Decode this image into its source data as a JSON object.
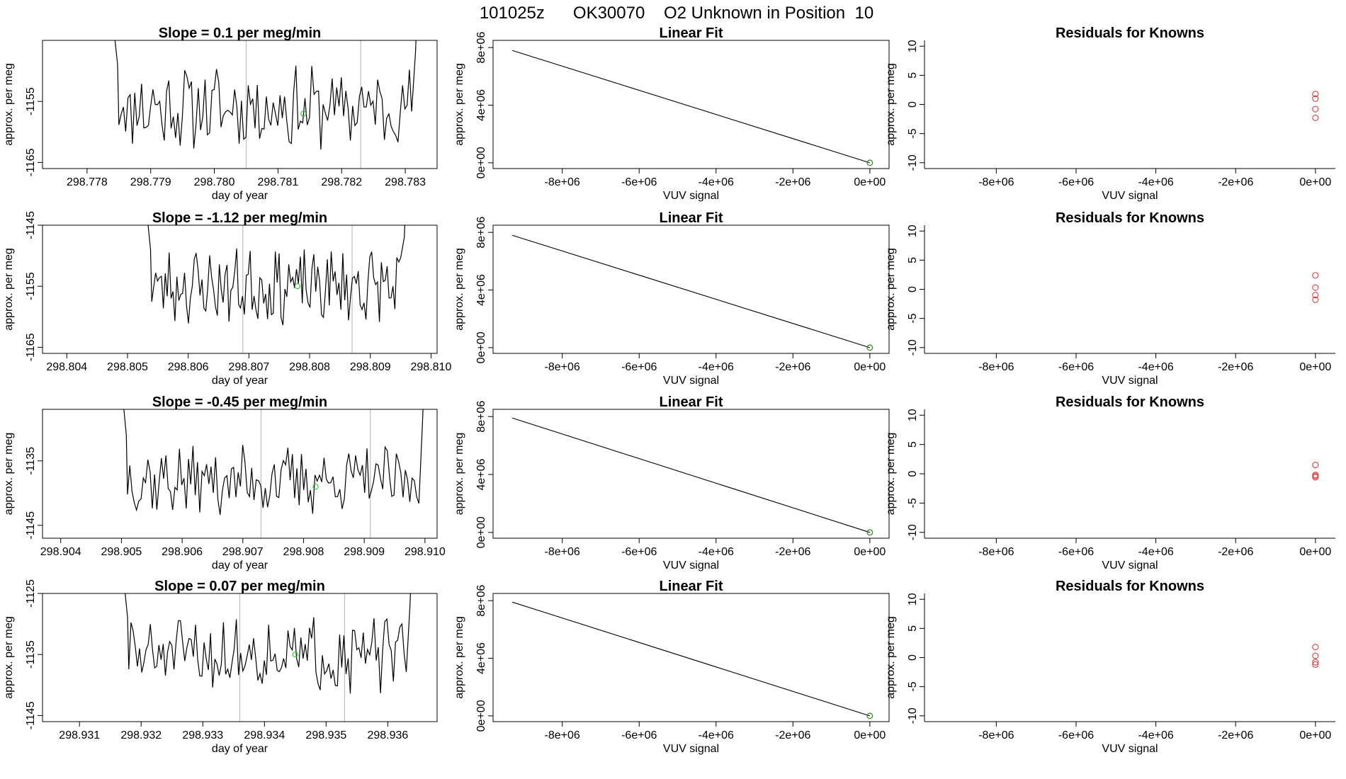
{
  "figure": {
    "title": "101025z      OK30070    O2 Unknown in Position  10"
  },
  "chart_data": [
    {
      "type": "line",
      "panel": "time-series",
      "row": 1,
      "title": "Slope =  0.1  per meg/min",
      "xlabel": "day of year",
      "ylabel": "approx. per meg",
      "xlim": [
        298.7773,
        298.7835
      ],
      "ylim": [
        -1166,
        -1145
      ],
      "xticks": [
        "298.778",
        "298.779",
        "298.780",
        "298.781",
        "298.782",
        "298.783"
      ],
      "yticks": [
        "-1155",
        "-1165"
      ],
      "vlines": [
        298.7805,
        298.7823
      ],
      "trace": {
        "start": 298.7785,
        "end": 298.7831,
        "n": 130,
        "mean": -1156,
        "amp": 5,
        "seed": 11
      },
      "marker": {
        "x": 298.7814,
        "y": -1157
      }
    },
    {
      "type": "line",
      "panel": "linear-fit",
      "row": 1,
      "title": "Linear Fit",
      "xlabel": "VUV signal",
      "ylabel": "approx. per meg",
      "xlim": [
        -9800000,
        500000
      ],
      "ylim": [
        -400000,
        8500000
      ],
      "xticks": [
        "-8e+06",
        "-6e+06",
        "-4e+06",
        "-2e+06",
        "0e+00"
      ],
      "yticks": [
        "0e+00",
        "4e+06",
        "8e+06"
      ],
      "x": [
        -9300000,
        0
      ],
      "y": [
        7800000,
        0
      ],
      "marker": {
        "x": 0,
        "y": 0
      }
    },
    {
      "type": "scatter",
      "panel": "residuals",
      "row": 1,
      "title": "Residuals for Knowns",
      "xlabel": "VUV signal",
      "ylabel": "approx. per meg",
      "xlim": [
        -9800000,
        500000
      ],
      "ylim": [
        -11,
        11
      ],
      "xticks": [
        "-8e+06",
        "-6e+06",
        "-4e+06",
        "-2e+06",
        "0e+00"
      ],
      "yticks": [
        "-10",
        "-5",
        "0",
        "5",
        "10"
      ],
      "x": [
        0,
        0,
        0,
        0
      ],
      "y": [
        1.8,
        1.0,
        -0.8,
        -2.3
      ]
    },
    {
      "type": "line",
      "panel": "time-series",
      "row": 2,
      "title": "Slope =  -1.12  per meg/min",
      "xlabel": "day of year",
      "ylabel": "approx. per meg",
      "xlim": [
        298.8036,
        298.8101
      ],
      "ylim": [
        -1166,
        -1145
      ],
      "xticks": [
        "298.804",
        "298.805",
        "298.806",
        "298.807",
        "298.808",
        "298.809",
        "298.810"
      ],
      "yticks": [
        "-1145",
        "-1155",
        "-1165"
      ],
      "vlines": [
        298.8069,
        298.8087
      ],
      "trace": {
        "start": 298.8054,
        "end": 298.8095,
        "n": 130,
        "mean": -1155,
        "amp": 4.5,
        "seed": 23
      },
      "marker": {
        "x": 298.8078,
        "y": -1155
      }
    },
    {
      "type": "line",
      "panel": "linear-fit",
      "row": 2,
      "title": "Linear Fit",
      "xlabel": "VUV signal",
      "ylabel": "approx. per meg",
      "xlim": [
        -9800000,
        500000
      ],
      "ylim": [
        -400000,
        8500000
      ],
      "xticks": [
        "-8e+06",
        "-6e+06",
        "-4e+06",
        "-2e+06",
        "0e+00"
      ],
      "yticks": [
        "0e+00",
        "4e+06",
        "8e+06"
      ],
      "x": [
        -9300000,
        0
      ],
      "y": [
        7800000,
        0
      ],
      "marker": {
        "x": 0,
        "y": 0
      }
    },
    {
      "type": "scatter",
      "panel": "residuals",
      "row": 2,
      "title": "Residuals for Knowns",
      "xlabel": "VUV signal",
      "ylabel": "approx. per meg",
      "xlim": [
        -9800000,
        500000
      ],
      "ylim": [
        -11,
        11
      ],
      "xticks": [
        "-8e+06",
        "-6e+06",
        "-4e+06",
        "-2e+06",
        "0e+00"
      ],
      "yticks": [
        "-10",
        "-5",
        "0",
        "5",
        "10"
      ],
      "x": [
        0,
        0,
        0,
        0
      ],
      "y": [
        2.4,
        0.3,
        -1.0,
        -1.8
      ]
    },
    {
      "type": "line",
      "panel": "time-series",
      "row": 3,
      "title": "Slope =  -0.45  per meg/min",
      "xlabel": "day of year",
      "ylabel": "approx. per meg",
      "xlim": [
        298.9037,
        298.9102
      ],
      "ylim": [
        -1147,
        -1127
      ],
      "xticks": [
        "298.904",
        "298.905",
        "298.906",
        "298.907",
        "298.908",
        "298.909",
        "298.910"
      ],
      "yticks": [
        "-1135",
        "-1145"
      ],
      "vlines": [
        298.9073,
        298.9091
      ],
      "trace": {
        "start": 298.9051,
        "end": 298.9099,
        "n": 130,
        "mean": -1138,
        "amp": 4,
        "seed": 37
      },
      "marker": {
        "x": 298.9082,
        "y": -1139
      }
    },
    {
      "type": "line",
      "panel": "linear-fit",
      "row": 3,
      "title": "Linear Fit",
      "xlabel": "VUV signal",
      "ylabel": "approx. per meg",
      "xlim": [
        -9800000,
        500000
      ],
      "ylim": [
        -400000,
        8500000
      ],
      "xticks": [
        "-8e+06",
        "-6e+06",
        "-4e+06",
        "-2e+06",
        "0e+00"
      ],
      "yticks": [
        "0e+00",
        "4e+06",
        "8e+06"
      ],
      "x": [
        -9300000,
        0
      ],
      "y": [
        7900000,
        0
      ],
      "marker": {
        "x": 0,
        "y": 0
      }
    },
    {
      "type": "scatter",
      "panel": "residuals",
      "row": 3,
      "title": "Residuals for Knowns",
      "xlabel": "VUV signal",
      "ylabel": "approx. per meg",
      "xlim": [
        -9800000,
        500000
      ],
      "ylim": [
        -11,
        11
      ],
      "xticks": [
        "-8e+06",
        "-6e+06",
        "-4e+06",
        "-2e+06",
        "0e+00"
      ],
      "yticks": [
        "-10",
        "-5",
        "0",
        "5",
        "10"
      ],
      "x": [
        0,
        0,
        0,
        0
      ],
      "y": [
        1.5,
        -0.2,
        -0.4,
        -0.6
      ]
    },
    {
      "type": "line",
      "panel": "time-series",
      "row": 4,
      "title": "Slope =  0.07  per meg/min",
      "xlabel": "day of year",
      "ylabel": "approx. per meg",
      "xlim": [
        298.9304,
        298.9368
      ],
      "ylim": [
        -1146,
        -1125
      ],
      "xticks": [
        "298.931",
        "298.932",
        "298.933",
        "298.934",
        "298.935",
        "298.936"
      ],
      "yticks": [
        "-1125",
        "-1135",
        "-1145"
      ],
      "vlines": [
        298.9336,
        298.9353
      ],
      "trace": {
        "start": 298.9318,
        "end": 298.9363,
        "n": 130,
        "mean": -1135,
        "amp": 4.5,
        "seed": 51
      },
      "marker": {
        "x": 298.9345,
        "y": -1135
      }
    },
    {
      "type": "line",
      "panel": "linear-fit",
      "row": 4,
      "title": "Linear Fit",
      "xlabel": "VUV signal",
      "ylabel": "approx. per meg",
      "xlim": [
        -9800000,
        500000
      ],
      "ylim": [
        -400000,
        8500000
      ],
      "xticks": [
        "-8e+06",
        "-6e+06",
        "-4e+06",
        "-2e+06",
        "0e+00"
      ],
      "yticks": [
        "0e+00",
        "4e+06",
        "8e+06"
      ],
      "x": [
        -9300000,
        0
      ],
      "y": [
        7900000,
        0
      ],
      "marker": {
        "x": 0,
        "y": 0
      }
    },
    {
      "type": "scatter",
      "panel": "residuals",
      "row": 4,
      "title": "Residuals for Knowns",
      "xlabel": "VUV signal",
      "ylabel": "approx. per meg",
      "xlim": [
        -9800000,
        500000
      ],
      "ylim": [
        -11,
        11
      ],
      "xticks": [
        "-8e+06",
        "-6e+06",
        "-4e+06",
        "-2e+06",
        "0e+00"
      ],
      "yticks": [
        "-10",
        "-5",
        "0",
        "5",
        "10"
      ],
      "x": [
        0,
        0,
        0,
        0
      ],
      "y": [
        1.8,
        0.3,
        -0.8,
        -1.2
      ]
    }
  ],
  "colors": {
    "trace": "#000000",
    "fit_line": "#000000",
    "vline": "#bdbdbd",
    "marker": "#2bc52b",
    "residual": "#d24040",
    "axis": "#000000"
  }
}
